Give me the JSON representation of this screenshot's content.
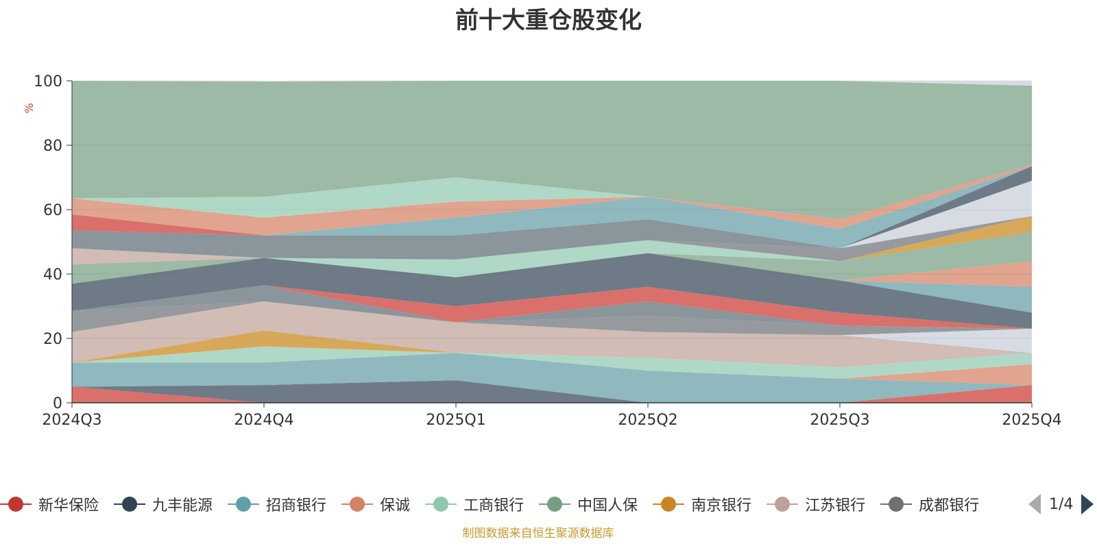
{
  "title": "前十大重仓股变化",
  "source_note": "制图数据来自恒生聚源数据库",
  "pager": {
    "text": "1/4"
  },
  "chart_data": {
    "type": "area",
    "title": "前十大重仓股变化",
    "xlabel": "",
    "ylabel": "%",
    "ylim": [
      0,
      100
    ],
    "y_ticks": [
      0,
      20,
      40,
      60,
      80,
      100
    ],
    "grid": true,
    "categories": [
      "2024Q3",
      "2024Q4",
      "2025Q1",
      "2025Q2",
      "2025Q3",
      "2025Q4"
    ],
    "legend_position": "bottom",
    "legend_visible": [
      "新华保险",
      "九丰能源",
      "招商银行",
      "保诚",
      "工商银行",
      "中国人保",
      "南京银行",
      "江苏银行",
      "成都银行"
    ],
    "bands": [
      {
        "color": "#d9706c",
        "lower": [
          0,
          0,
          0,
          0,
          0,
          0
        ],
        "upper": [
          5,
          0,
          0,
          0,
          0,
          5.5
        ]
      },
      {
        "color": "#6e7b86",
        "lower": [
          5,
          0,
          0,
          0,
          0,
          5.5
        ],
        "upper": [
          5,
          5.5,
          7,
          0,
          0,
          5.5
        ]
      },
      {
        "color": "#8fb8bf",
        "lower": [
          5,
          5.5,
          7,
          0,
          0,
          5.5
        ],
        "upper": [
          12.5,
          12.5,
          15.5,
          10,
          7.5,
          5.5
        ]
      },
      {
        "color": "#e0a48f",
        "lower": [
          12.5,
          12.5,
          15.5,
          10,
          7.5,
          5.5
        ],
        "upper": [
          12.5,
          12.5,
          15.5,
          10,
          7.5,
          12
        ]
      },
      {
        "color": "#b0d8c6",
        "lower": [
          12.5,
          12.5,
          15.5,
          10,
          7.5,
          12
        ],
        "upper": [
          12.5,
          17.5,
          15.5,
          14,
          11,
          15.5
        ]
      },
      {
        "color": "#d8a85a",
        "lower": [
          12.5,
          17.5,
          15.5,
          14,
          11,
          15.5
        ],
        "upper": [
          12.5,
          22.5,
          15.5,
          14,
          11,
          15.5
        ]
      },
      {
        "color": "#d1bcb6",
        "lower": [
          12.5,
          22.5,
          15.5,
          14,
          11,
          15.5
        ],
        "upper": [
          22,
          31.5,
          25,
          22,
          21,
          15.5
        ]
      },
      {
        "color": "#d7dbe3",
        "lower": [
          22,
          31.5,
          25,
          22,
          21,
          15.5
        ],
        "upper": [
          22,
          31.5,
          25,
          22,
          21,
          23
        ]
      },
      {
        "color": "#96999d",
        "lower": [
          22,
          31.5,
          25,
          22,
          21,
          23
        ],
        "upper": [
          28.5,
          31.5,
          25,
          27,
          24,
          23
        ]
      },
      {
        "color": "#8a959c",
        "lower": [
          28.5,
          31.5,
          25,
          27,
          24,
          23
        ],
        "upper": [
          28.5,
          36.5,
          25,
          31.5,
          24,
          23
        ]
      },
      {
        "color": "#d9706c",
        "lower": [
          28.5,
          36.5,
          25,
          31.5,
          24,
          23
        ],
        "upper": [
          28.5,
          36.5,
          30,
          36,
          28,
          23
        ]
      },
      {
        "color": "#6e7b86",
        "lower": [
          28.5,
          36.5,
          30,
          36,
          28,
          23
        ],
        "upper": [
          37,
          45,
          39,
          46.5,
          38,
          28
        ]
      },
      {
        "color": "#8fb8bf",
        "lower": [
          37,
          45,
          39,
          46.5,
          38,
          28
        ],
        "upper": [
          37,
          45,
          39,
          46.5,
          38,
          36
        ]
      },
      {
        "color": "#e0a48f",
        "lower": [
          37,
          45,
          39,
          46.5,
          38,
          36
        ],
        "upper": [
          37,
          45,
          39,
          46.5,
          38,
          44
        ]
      },
      {
        "color": "#9cbaa6",
        "lower": [
          37,
          45,
          39,
          46.5,
          38,
          44
        ],
        "upper": [
          43,
          45,
          39,
          46.5,
          44,
          53
        ]
      },
      {
        "color": "#d8a85a",
        "lower": [
          43,
          45,
          39,
          46.5,
          44,
          53
        ],
        "upper": [
          43,
          45,
          39,
          46.5,
          44,
          58
        ]
      },
      {
        "color": "#b0d8c6",
        "lower": [
          43,
          45,
          39,
          46.5,
          44,
          58
        ],
        "upper": [
          43,
          45,
          44.5,
          50.5,
          44,
          58
        ]
      },
      {
        "color": "#d1bcb6",
        "lower": [
          43,
          45,
          44.5,
          50.5,
          44,
          58
        ],
        "upper": [
          48,
          45,
          44.5,
          50.5,
          44,
          58
        ]
      },
      {
        "color": "#96999d",
        "lower": [
          48,
          45,
          44.5,
          50.5,
          44,
          58
        ],
        "upper": [
          48,
          45,
          44.5,
          50.5,
          48,
          58
        ]
      },
      {
        "color": "#8a959c",
        "lower": [
          48,
          45,
          44.5,
          50.5,
          48,
          58
        ],
        "upper": [
          53.5,
          52,
          52,
          57,
          48,
          58
        ]
      },
      {
        "color": "#d7dbe3",
        "lower": [
          53.5,
          52,
          52,
          57,
          48,
          58
        ],
        "upper": [
          53.5,
          52,
          52,
          57,
          48,
          69
        ]
      },
      {
        "color": "#6e7b86",
        "lower": [
          53.5,
          52,
          52,
          57,
          48,
          69
        ],
        "upper": [
          53.5,
          52,
          52,
          57,
          48,
          73.5
        ]
      },
      {
        "color": "#d9706c",
        "lower": [
          53.5,
          52,
          52,
          57,
          48,
          73.5
        ],
        "upper": [
          58.5,
          52,
          52,
          57,
          48,
          73.5
        ]
      },
      {
        "color": "#8fb8bf",
        "lower": [
          58.5,
          52,
          52,
          57,
          48,
          73.5
        ],
        "upper": [
          58.5,
          52,
          57.5,
          64,
          54,
          73.5
        ]
      },
      {
        "color": "#e0a48f",
        "lower": [
          58.5,
          52,
          57.5,
          64,
          54,
          73.5
        ],
        "upper": [
          63.5,
          57.5,
          62.5,
          64,
          57,
          74
        ]
      },
      {
        "color": "#b0d8c6",
        "lower": [
          63.5,
          57.5,
          62.5,
          64,
          57,
          74
        ],
        "upper": [
          63.5,
          64,
          70,
          64,
          57,
          74
        ]
      },
      {
        "color": "#9cbaa6",
        "lower": [
          63.5,
          64,
          70,
          64,
          57,
          74
        ],
        "upper": [
          100,
          99.8,
          100,
          100,
          100,
          98.5
        ]
      },
      {
        "color": "#d7dbe3",
        "lower": [
          100,
          99.8,
          100,
          100,
          100,
          98.5
        ],
        "upper": [
          100,
          99.8,
          100,
          100,
          100,
          100
        ]
      }
    ]
  },
  "legend": {
    "items": [
      {
        "name": "新华保险",
        "color": "#c23531"
      },
      {
        "name": "九丰能源",
        "color": "#2f4554"
      },
      {
        "name": "招商银行",
        "color": "#61a0a8"
      },
      {
        "name": "保诚",
        "color": "#d48265"
      },
      {
        "name": "工商银行",
        "color": "#91c7ae"
      },
      {
        "name": "中国人保",
        "color": "#749f83"
      },
      {
        "name": "南京银行",
        "color": "#ca8622"
      },
      {
        "name": "江苏银行",
        "color": "#bda29a"
      },
      {
        "name": "成都银行",
        "color": "#6e7074"
      }
    ]
  }
}
